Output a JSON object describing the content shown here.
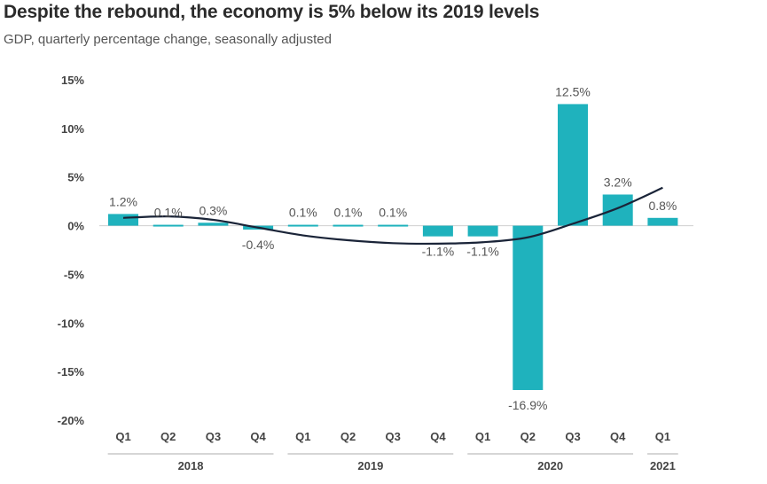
{
  "chart_data": {
    "type": "bar",
    "title": "Despite the rebound, the economy is 5% below its 2019 levels",
    "subtitle": "GDP, quarterly percentage change, seasonally adjusted",
    "categories": [
      "Q1",
      "Q2",
      "Q3",
      "Q4",
      "Q1",
      "Q2",
      "Q3",
      "Q4",
      "Q1",
      "Q2",
      "Q3",
      "Q4",
      "Q1"
    ],
    "years": [
      {
        "label": "2018",
        "start": 0,
        "end": 3
      },
      {
        "label": "2019",
        "start": 4,
        "end": 7
      },
      {
        "label": "2020",
        "start": 8,
        "end": 11
      },
      {
        "label": "2021",
        "start": 12,
        "end": 12
      }
    ],
    "values": [
      1.2,
      0.1,
      0.3,
      -0.4,
      0.1,
      0.1,
      0.1,
      -1.1,
      -1.1,
      -16.9,
      12.5,
      3.2,
      0.8
    ],
    "value_labels": [
      "1.2%",
      "0.1%",
      "0.3%",
      "-0.4%",
      "0.1%",
      "0.1%",
      "0.1%",
      "-1.1%",
      "-1.1%",
      "-16.9%",
      "12.5%",
      "3.2%",
      "0.8%"
    ],
    "yticks": [
      15,
      10,
      5,
      0,
      -5,
      -10,
      -15,
      -20
    ],
    "ytick_labels": [
      "15%",
      "10%",
      "5%",
      "0%",
      "-5%",
      "-10%",
      "-15%",
      "-20%"
    ],
    "ylim": [
      -20,
      15
    ],
    "trend_values": [
      0.8,
      0.95,
      0.6,
      -0.2,
      -1.0,
      -1.5,
      -1.8,
      -1.85,
      -1.7,
      -1.2,
      0.2,
      1.8,
      3.9
    ],
    "colors": {
      "bar": "#1fb2bd",
      "trend": "#1a2438",
      "zero_line": "#cfcfcf",
      "year_line": "#c8c8c8"
    }
  }
}
